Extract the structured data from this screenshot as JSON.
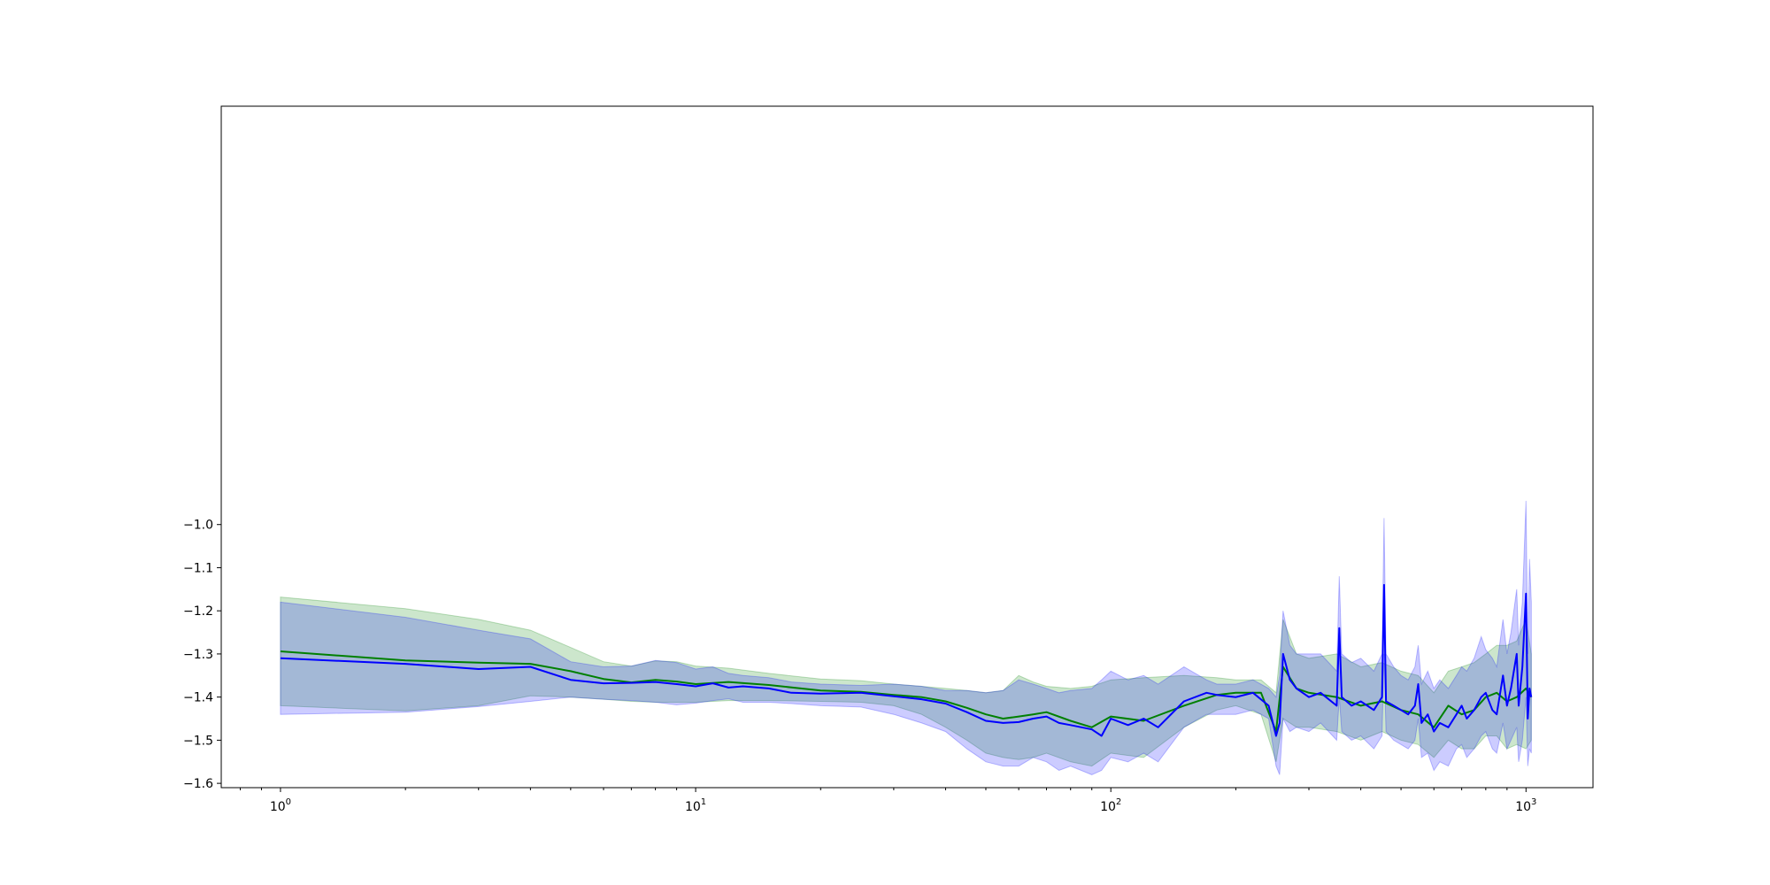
{
  "chart_data": {
    "type": "line",
    "title": "",
    "xlabel": "",
    "ylabel": "",
    "xscale": "log",
    "xlim": [
      0.72,
      1450
    ],
    "ylim": [
      -1.61,
      -0.03
    ],
    "grid": false,
    "x_ticks": [
      {
        "base": "10",
        "exp": "0",
        "value": 1
      },
      {
        "base": "10",
        "exp": "1",
        "value": 10
      },
      {
        "base": "10",
        "exp": "2",
        "value": 100
      },
      {
        "base": "10",
        "exp": "3",
        "value": 1000
      }
    ],
    "y_ticks": [
      {
        "label": "−1.0",
        "value": -1.0
      },
      {
        "label": "−1.1",
        "value": -1.1
      },
      {
        "label": "−1.2",
        "value": -1.2
      },
      {
        "label": "−1.3",
        "value": -1.3
      },
      {
        "label": "−1.4",
        "value": -1.4
      },
      {
        "label": "−1.5",
        "value": -1.5
      },
      {
        "label": "−1.6",
        "value": -1.6
      }
    ],
    "series": [
      {
        "color": "#008000",
        "band_color": "#008000",
        "x": [
          1,
          2,
          3,
          4,
          5,
          6,
          7,
          8,
          9,
          10,
          12,
          15,
          20,
          25,
          30,
          35,
          40,
          45,
          50,
          55,
          60,
          65,
          70,
          80,
          90,
          100,
          120,
          150,
          180,
          200,
          230,
          250,
          260,
          280,
          300,
          350,
          400,
          450,
          500,
          550,
          600,
          650,
          700,
          750,
          800,
          850,
          900,
          950,
          1000,
          1030
        ],
        "y": [
          -1.294,
          -1.315,
          -1.32,
          -1.323,
          -1.34,
          -1.358,
          -1.366,
          -1.36,
          -1.364,
          -1.37,
          -1.365,
          -1.372,
          -1.385,
          -1.388,
          -1.395,
          -1.4,
          -1.41,
          -1.425,
          -1.44,
          -1.45,
          -1.445,
          -1.44,
          -1.435,
          -1.455,
          -1.47,
          -1.445,
          -1.455,
          -1.42,
          -1.395,
          -1.39,
          -1.39,
          -1.48,
          -1.33,
          -1.38,
          -1.39,
          -1.4,
          -1.42,
          -1.41,
          -1.43,
          -1.44,
          -1.47,
          -1.42,
          -1.44,
          -1.43,
          -1.4,
          -1.39,
          -1.41,
          -1.4,
          -1.38,
          -1.4
        ],
        "lower": [
          -1.42,
          -1.432,
          -1.42,
          -1.397,
          -1.4,
          -1.405,
          -1.41,
          -1.412,
          -1.412,
          -1.412,
          -1.408,
          -1.408,
          -1.41,
          -1.412,
          -1.42,
          -1.44,
          -1.47,
          -1.5,
          -1.53,
          -1.54,
          -1.545,
          -1.54,
          -1.53,
          -1.55,
          -1.56,
          -1.53,
          -1.54,
          -1.47,
          -1.43,
          -1.42,
          -1.44,
          -1.55,
          -1.45,
          -1.47,
          -1.47,
          -1.48,
          -1.5,
          -1.48,
          -1.5,
          -1.51,
          -1.54,
          -1.5,
          -1.52,
          -1.52,
          -1.49,
          -1.49,
          -1.52,
          -1.51,
          -1.52,
          -1.5
        ],
        "upper": [
          -1.168,
          -1.195,
          -1.22,
          -1.245,
          -1.285,
          -1.318,
          -1.328,
          -1.316,
          -1.318,
          -1.328,
          -1.333,
          -1.345,
          -1.358,
          -1.362,
          -1.37,
          -1.375,
          -1.38,
          -1.385,
          -1.39,
          -1.385,
          -1.35,
          -1.365,
          -1.375,
          -1.38,
          -1.375,
          -1.36,
          -1.355,
          -1.35,
          -1.355,
          -1.36,
          -1.36,
          -1.39,
          -1.22,
          -1.3,
          -1.31,
          -1.3,
          -1.33,
          -1.32,
          -1.34,
          -1.35,
          -1.39,
          -1.34,
          -1.33,
          -1.32,
          -1.3,
          -1.28,
          -1.28,
          -1.27,
          -1.22,
          -1.3
        ]
      },
      {
        "color": "#0000ff",
        "band_color": "#0000ff",
        "x": [
          1,
          2,
          3,
          4,
          5,
          6,
          7,
          8,
          9,
          10,
          11,
          12,
          13,
          15,
          17,
          20,
          25,
          30,
          35,
          40,
          45,
          50,
          55,
          60,
          65,
          70,
          75,
          80,
          90,
          95,
          100,
          110,
          120,
          130,
          150,
          170,
          180,
          200,
          220,
          240,
          250,
          255,
          260,
          270,
          280,
          300,
          320,
          350,
          355,
          360,
          380,
          400,
          430,
          450,
          455,
          460,
          480,
          500,
          520,
          540,
          550,
          560,
          580,
          600,
          620,
          650,
          680,
          700,
          720,
          750,
          780,
          800,
          830,
          850,
          880,
          900,
          920,
          950,
          960,
          980,
          1000,
          1010,
          1020,
          1030
        ],
        "y": [
          -1.31,
          -1.323,
          -1.335,
          -1.33,
          -1.36,
          -1.368,
          -1.367,
          -1.365,
          -1.37,
          -1.375,
          -1.368,
          -1.378,
          -1.375,
          -1.38,
          -1.39,
          -1.392,
          -1.39,
          -1.398,
          -1.405,
          -1.415,
          -1.435,
          -1.455,
          -1.46,
          -1.458,
          -1.45,
          -1.445,
          -1.46,
          -1.465,
          -1.475,
          -1.49,
          -1.45,
          -1.465,
          -1.45,
          -1.47,
          -1.41,
          -1.39,
          -1.395,
          -1.4,
          -1.39,
          -1.42,
          -1.49,
          -1.46,
          -1.3,
          -1.36,
          -1.38,
          -1.4,
          -1.39,
          -1.42,
          -1.24,
          -1.4,
          -1.42,
          -1.41,
          -1.43,
          -1.4,
          -1.14,
          -1.41,
          -1.42,
          -1.43,
          -1.44,
          -1.42,
          -1.37,
          -1.46,
          -1.44,
          -1.48,
          -1.46,
          -1.47,
          -1.44,
          -1.42,
          -1.45,
          -1.43,
          -1.4,
          -1.39,
          -1.43,
          -1.44,
          -1.35,
          -1.42,
          -1.38,
          -1.3,
          -1.42,
          -1.33,
          -1.16,
          -1.45,
          -1.38,
          -1.4
        ],
        "lower": [
          -1.44,
          -1.435,
          -1.422,
          -1.41,
          -1.4,
          -1.405,
          -1.408,
          -1.412,
          -1.418,
          -1.414,
          -1.408,
          -1.404,
          -1.412,
          -1.412,
          -1.415,
          -1.42,
          -1.423,
          -1.44,
          -1.46,
          -1.48,
          -1.52,
          -1.55,
          -1.56,
          -1.56,
          -1.54,
          -1.55,
          -1.57,
          -1.56,
          -1.58,
          -1.57,
          -1.54,
          -1.55,
          -1.53,
          -1.55,
          -1.47,
          -1.44,
          -1.44,
          -1.44,
          -1.43,
          -1.45,
          -1.56,
          -1.58,
          -1.45,
          -1.48,
          -1.47,
          -1.48,
          -1.46,
          -1.5,
          -1.4,
          -1.48,
          -1.5,
          -1.49,
          -1.52,
          -1.49,
          -1.3,
          -1.48,
          -1.5,
          -1.51,
          -1.52,
          -1.5,
          -1.45,
          -1.54,
          -1.53,
          -1.57,
          -1.55,
          -1.56,
          -1.52,
          -1.51,
          -1.54,
          -1.52,
          -1.49,
          -1.48,
          -1.52,
          -1.53,
          -1.46,
          -1.52,
          -1.5,
          -1.47,
          -1.55,
          -1.5,
          -1.4,
          -1.56,
          -1.52,
          -1.53
        ],
        "upper": [
          -1.18,
          -1.215,
          -1.245,
          -1.265,
          -1.318,
          -1.33,
          -1.328,
          -1.315,
          -1.32,
          -1.335,
          -1.33,
          -1.345,
          -1.35,
          -1.355,
          -1.365,
          -1.37,
          -1.373,
          -1.37,
          -1.375,
          -1.385,
          -1.385,
          -1.39,
          -1.385,
          -1.36,
          -1.37,
          -1.38,
          -1.39,
          -1.385,
          -1.38,
          -1.36,
          -1.34,
          -1.36,
          -1.35,
          -1.37,
          -1.33,
          -1.36,
          -1.37,
          -1.37,
          -1.36,
          -1.38,
          -1.4,
          -1.35,
          -1.2,
          -1.28,
          -1.3,
          -1.3,
          -1.3,
          -1.34,
          -1.12,
          -1.3,
          -1.32,
          -1.31,
          -1.34,
          -1.3,
          -0.985,
          -1.3,
          -1.33,
          -1.35,
          -1.36,
          -1.33,
          -1.28,
          -1.37,
          -1.34,
          -1.38,
          -1.36,
          -1.38,
          -1.35,
          -1.33,
          -1.34,
          -1.31,
          -1.26,
          -1.29,
          -1.31,
          -1.33,
          -1.22,
          -1.3,
          -1.25,
          -1.15,
          -1.28,
          -1.18,
          -0.945,
          -1.3,
          -1.08,
          -1.18
        ]
      }
    ]
  }
}
